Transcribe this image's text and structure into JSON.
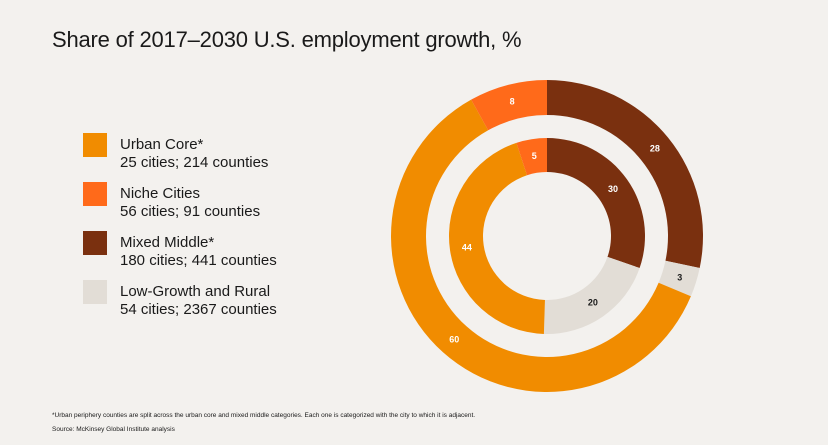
{
  "title": "Share of 2017–2030 U.S. employment growth, %",
  "legend": [
    {
      "label": "Urban Core*",
      "sub": "25 cities; 214 counties",
      "color": "#f18c00"
    },
    {
      "label": "Niche Cities",
      "sub": "56 cities; 91 counties",
      "color": "#ff6a1a"
    },
    {
      "label": "Mixed Middle*",
      "sub": "180 cities; 441 counties",
      "color": "#7a300f"
    },
    {
      "label": "Low-Growth and Rural",
      "sub": "54 cities; 2367 counties",
      "color": "#e2ddd6"
    }
  ],
  "chart_data": {
    "type": "pie",
    "title": "Share of 2017–2030 U.S. employment growth, %",
    "categories": [
      "Mixed Middle*",
      "Low-Growth and Rural",
      "Urban Core*",
      "Niche Cities"
    ],
    "series": [
      {
        "name": "",
        "ring": "outer",
        "values": [
          28,
          3,
          60,
          8
        ],
        "labels": [
          "28",
          "3",
          "60",
          "8"
        ]
      },
      {
        "name": "",
        "ring": "inner",
        "values": [
          30,
          20,
          44,
          5
        ],
        "labels": [
          "30",
          "20",
          "44",
          "5"
        ]
      }
    ],
    "colors": [
      "#7a300f",
      "#e2ddd6",
      "#f18c00",
      "#ff6a1a"
    ]
  },
  "footnote": "*Urban periphery counties are split across the urban core and mixed middle categories. Each one is categorized with the city to which it is adjacent.",
  "source": "Source: McKinsey Global Institute analysis"
}
